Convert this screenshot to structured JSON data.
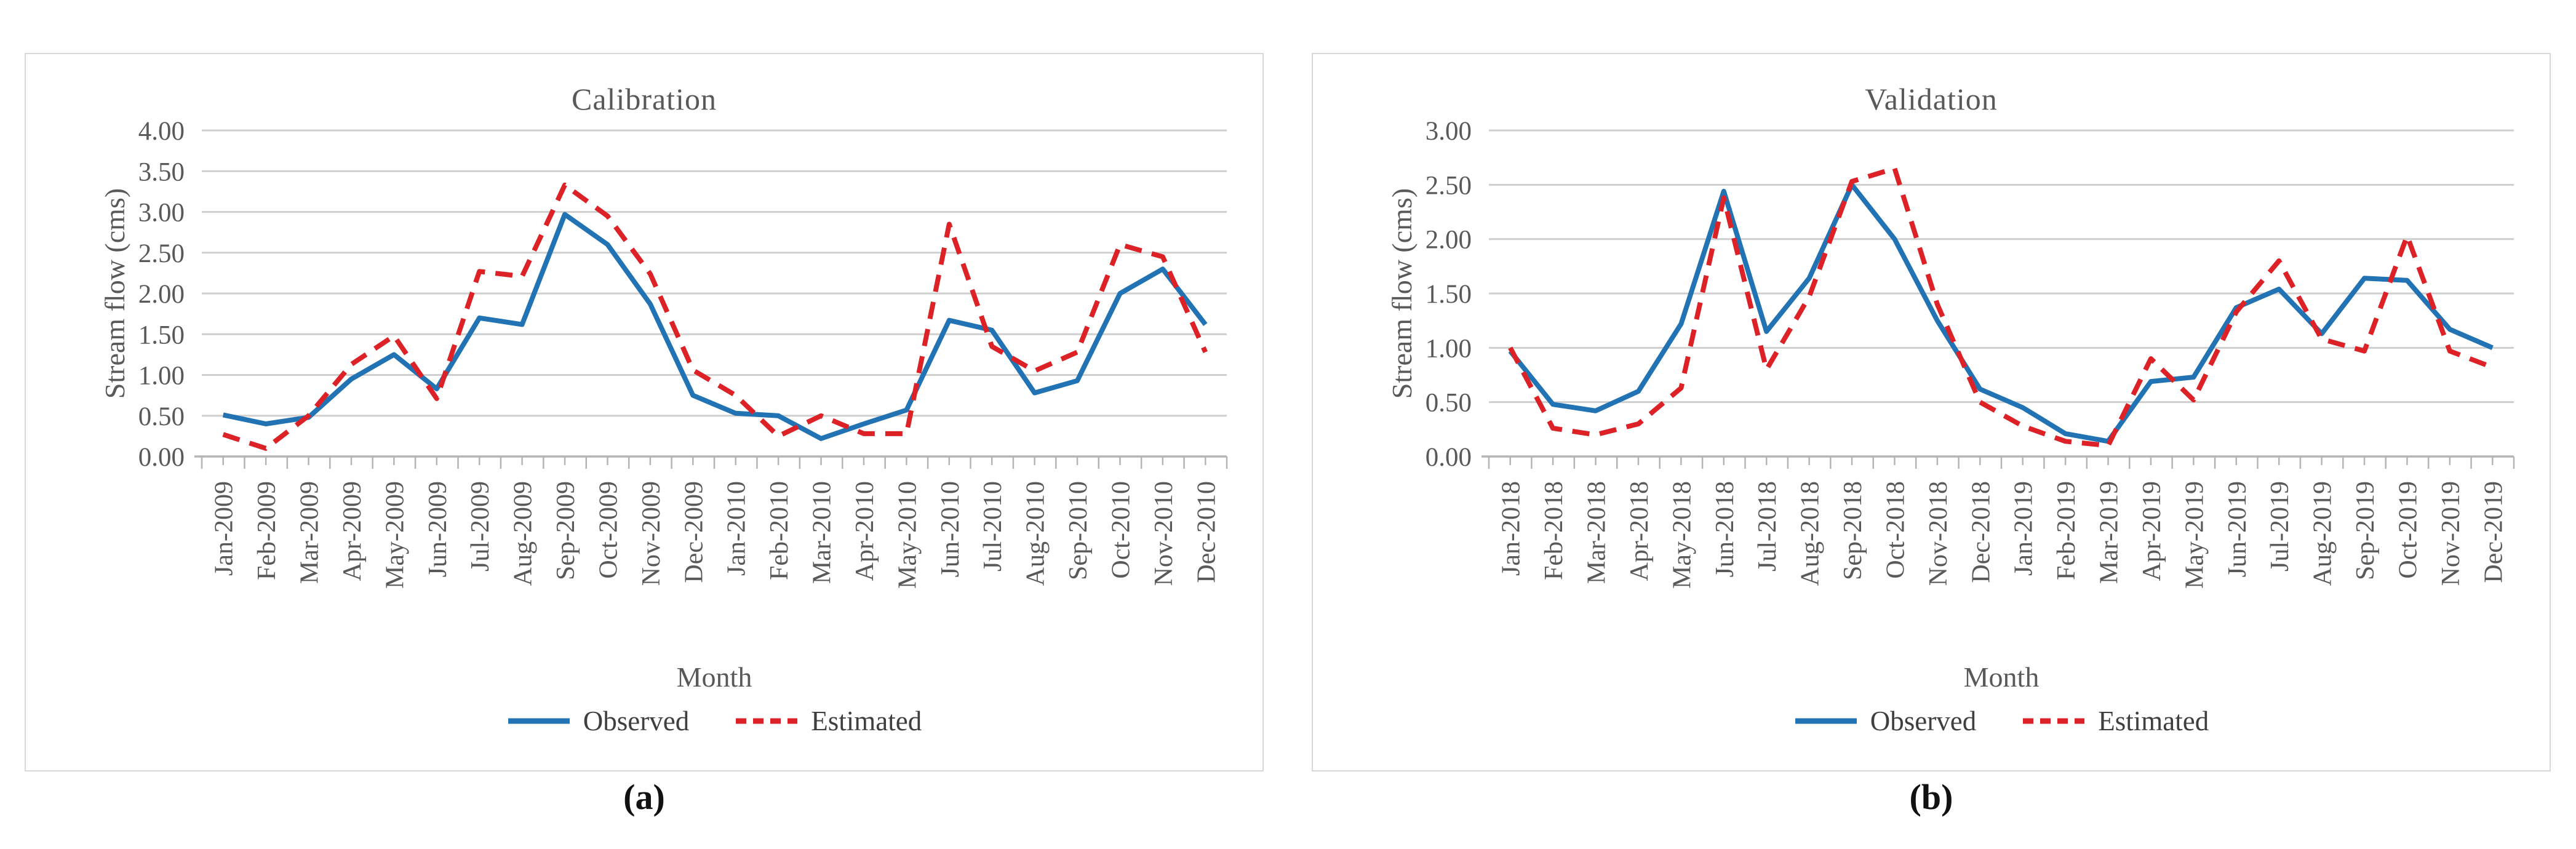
{
  "figure": {
    "captions": [
      "(a)",
      "(b)"
    ],
    "colors": {
      "observed": "#2173B4",
      "estimated": "#DC2227",
      "grid": "#CFCFCF",
      "axis": "#B5B5B5",
      "text": "#595959",
      "legend_text": "#3F3F3F",
      "panel_border": "#D8D8D8",
      "background": "#FFFFFF"
    }
  },
  "chart_data": [
    {
      "type": "line",
      "title": "Calibration",
      "xlabel": "Month",
      "ylabel": "Stream flow (cms)",
      "ylim": [
        0,
        4.0
      ],
      "yticks": [
        "0.00",
        "0.50",
        "1.00",
        "1.50",
        "2.00",
        "2.50",
        "3.00",
        "3.50",
        "4.00"
      ],
      "grid": true,
      "legend_position": "bottom",
      "categories": [
        "Jan-2009",
        "Feb-2009",
        "Mar-2009",
        "Apr-2009",
        "May-2009",
        "Jun-2009",
        "Jul-2009",
        "Aug-2009",
        "Sep-2009",
        "Oct-2009",
        "Nov-2009",
        "Dec-2009",
        "Jan-2010",
        "Feb-2010",
        "Mar-2010",
        "Apr-2010",
        "May-2010",
        "Jun-2010",
        "Jul-2010",
        "Aug-2010",
        "Sep-2010",
        "Oct-2010",
        "Nov-2010",
        "Dec-2010"
      ],
      "series": [
        {
          "name": "Observed",
          "style": "solid",
          "values": [
            0.51,
            0.4,
            0.48,
            0.95,
            1.25,
            0.83,
            1.7,
            1.62,
            2.97,
            2.6,
            1.87,
            0.75,
            0.53,
            0.5,
            0.22,
            0.4,
            0.57,
            1.67,
            1.55,
            0.78,
            0.93,
            2.0,
            2.3,
            1.62
          ]
        },
        {
          "name": "Estimated",
          "style": "dashed",
          "values": [
            0.27,
            0.1,
            0.5,
            1.13,
            1.48,
            0.71,
            2.27,
            2.21,
            3.33,
            2.95,
            2.24,
            1.06,
            0.75,
            0.25,
            0.5,
            0.28,
            0.28,
            2.85,
            1.35,
            1.05,
            1.28,
            2.6,
            2.45,
            1.28
          ]
        }
      ]
    },
    {
      "type": "line",
      "title": "Validation",
      "xlabel": "Month",
      "ylabel": "Stream flow (cms)",
      "ylim": [
        0,
        3.0
      ],
      "yticks": [
        "0.00",
        "0.50",
        "1.00",
        "1.50",
        "2.00",
        "2.50",
        "3.00"
      ],
      "grid": true,
      "legend_position": "bottom",
      "categories": [
        "Jan-2018",
        "Feb-2018",
        "Mar-2018",
        "Apr-2018",
        "May-2018",
        "Jun-2018",
        "Jul-2018",
        "Aug-2018",
        "Sep-2018",
        "Oct-2018",
        "Nov-2018",
        "Dec-2018",
        "Jan-2019",
        "Feb-2019",
        "Mar-2019",
        "Apr-2019",
        "May-2019",
        "Jun-2019",
        "Jul-2019",
        "Aug-2019",
        "Sep-2019",
        "Oct-2019",
        "Nov-2019",
        "Dec-2019"
      ],
      "series": [
        {
          "name": "Observed",
          "style": "solid",
          "values": [
            0.97,
            0.48,
            0.42,
            0.6,
            1.22,
            2.44,
            1.15,
            1.64,
            2.5,
            2.0,
            1.25,
            0.62,
            0.45,
            0.21,
            0.14,
            0.69,
            0.73,
            1.37,
            1.54,
            1.13,
            1.64,
            1.62,
            1.17,
            1.0
          ]
        },
        {
          "name": "Estimated",
          "style": "dashed",
          "values": [
            1.0,
            0.26,
            0.2,
            0.3,
            0.63,
            2.38,
            0.8,
            1.47,
            2.53,
            2.65,
            1.4,
            0.5,
            0.28,
            0.14,
            0.1,
            0.9,
            0.52,
            1.33,
            1.8,
            1.08,
            0.97,
            2.03,
            0.97,
            0.82
          ]
        }
      ]
    }
  ]
}
